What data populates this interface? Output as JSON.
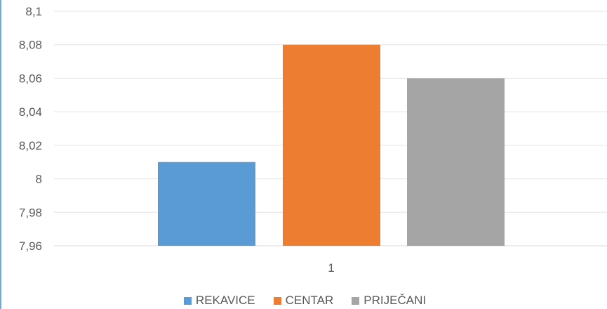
{
  "chart_data": {
    "type": "bar",
    "categories": [
      "1"
    ],
    "series": [
      {
        "name": "REKAVICE",
        "values": [
          8.01
        ],
        "color": "#5b9bd5"
      },
      {
        "name": "CENTAR",
        "values": [
          8.08
        ],
        "color": "#ed7d31"
      },
      {
        "name": "PRIJEČANI",
        "values": [
          8.06
        ],
        "color": "#a5a5a5"
      }
    ],
    "ylim": [
      7.96,
      8.1
    ],
    "yticks": [
      "7,96",
      "7,98",
      "8",
      "8,02",
      "8,04",
      "8,06",
      "8,08",
      "8,1"
    ],
    "title": "",
    "xlabel": "",
    "ylabel": "",
    "grid": true,
    "legend_position": "bottom"
  }
}
